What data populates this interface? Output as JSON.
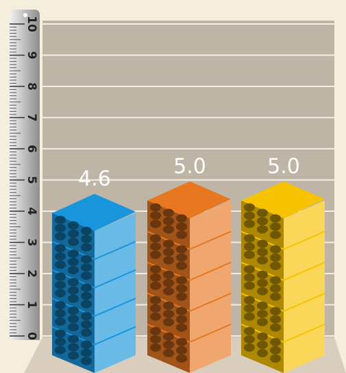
{
  "chart_data": {
    "type": "bar",
    "categories": [
      null,
      null,
      null
    ],
    "values": [
      4.6,
      5.0,
      5.0
    ],
    "value_labels": [
      "4.6",
      "5.0",
      "5.0"
    ],
    "colors": [
      "#1995dc",
      "#e87722",
      "#f7c200"
    ],
    "ylim": [
      0,
      10
    ],
    "yticks": [
      0,
      1,
      2,
      3,
      4,
      5,
      6,
      7,
      8,
      9,
      10
    ],
    "grid": true
  }
}
